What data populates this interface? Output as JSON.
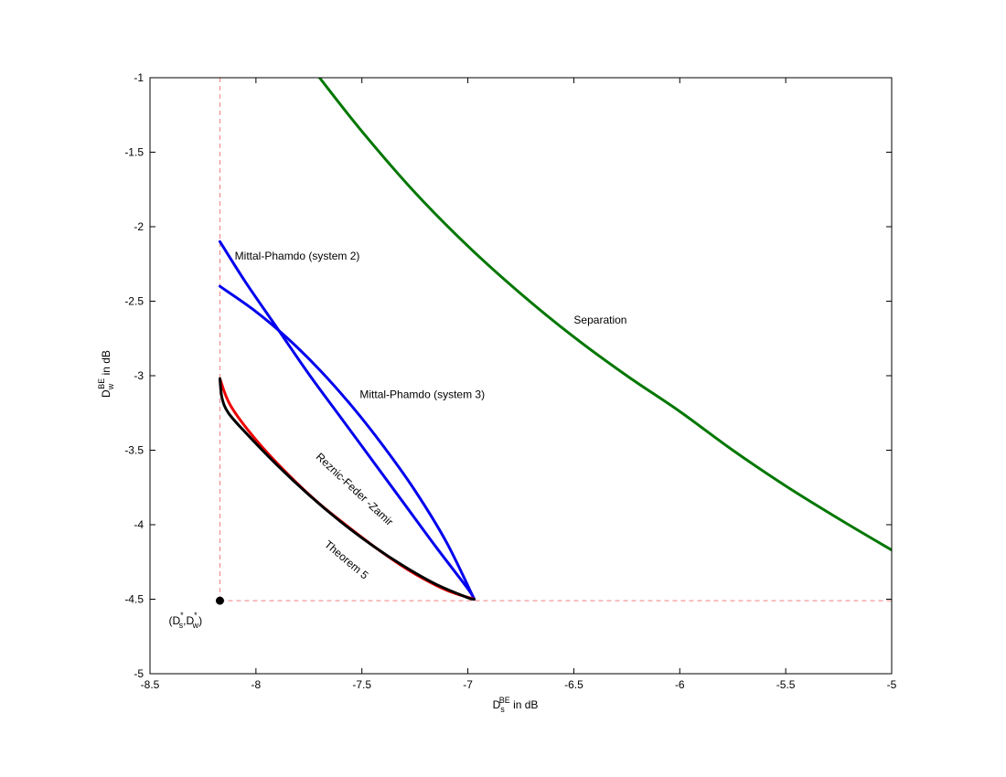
{
  "chart_data": {
    "type": "line",
    "xlim": [
      -8.5,
      -5
    ],
    "ylim": [
      -5,
      -1
    ],
    "xticks": [
      -8.5,
      -8,
      -7.5,
      -7,
      -6.5,
      -6,
      -5.5,
      -5
    ],
    "yticks": [
      -5,
      -4.5,
      -4,
      -3.5,
      -3,
      -2.5,
      -2,
      -1.5,
      -1
    ],
    "xtick_labels": [
      "-8.5",
      "-8",
      "-7.5",
      "-7",
      "-6.5",
      "-6",
      "-5.5",
      "-5"
    ],
    "ytick_labels": [
      "-5",
      "-4.5",
      "-4",
      "-3.5",
      "-3",
      "-2.5",
      "-2",
      "-1.5",
      "-1"
    ],
    "xlabel": {
      "main": "D",
      "sup": "BE",
      "sub": "s",
      "rest": " in dB"
    },
    "ylabel": {
      "main": "D",
      "sup": "BE",
      "sub": "w",
      "rest": " in dB"
    },
    "grid": false,
    "series": [
      {
        "name": "Separation",
        "color": "#007700",
        "x": [
          -7.7,
          -7.5,
          -7.25,
          -7.0,
          -6.75,
          -6.5,
          -6.25,
          -6.0,
          -5.75,
          -5.5,
          -5.25,
          -5.0
        ],
        "y": [
          -1.0,
          -1.36,
          -1.77,
          -2.13,
          -2.45,
          -2.74,
          -3.0,
          -3.24,
          -3.5,
          -3.74,
          -3.96,
          -4.17
        ]
      },
      {
        "name": "Mittal-Phamdo (system 2)",
        "color": "#0000ee",
        "x": [
          -8.17,
          -8.05,
          -7.9,
          -7.75,
          -7.6,
          -7.45,
          -7.3,
          -7.15,
          -7.0,
          -6.97
        ],
        "y": [
          -2.1,
          -2.37,
          -2.68,
          -2.99,
          -3.28,
          -3.57,
          -3.86,
          -4.15,
          -4.43,
          -4.5
        ]
      },
      {
        "name": "Mittal-Phamdo (system 3)",
        "color": "#0000ee",
        "x": [
          -8.17,
          -8.0,
          -7.85,
          -7.7,
          -7.55,
          -7.4,
          -7.25,
          -7.1,
          -6.97
        ],
        "y": [
          -2.4,
          -2.57,
          -2.75,
          -2.96,
          -3.2,
          -3.47,
          -3.77,
          -4.12,
          -4.5
        ]
      },
      {
        "name": "Reznic-Feder-Zamir",
        "color": "#ee0000",
        "x": [
          -8.17,
          -8.12,
          -8.0,
          -7.85,
          -7.7,
          -7.55,
          -7.4,
          -7.25,
          -7.1,
          -6.97
        ],
        "y": [
          -3.02,
          -3.2,
          -3.43,
          -3.66,
          -3.86,
          -4.03,
          -4.19,
          -4.33,
          -4.44,
          -4.5
        ]
      },
      {
        "name": "Theorem 5",
        "color": "#000000",
        "x": [
          -8.17,
          -8.16,
          -8.13,
          -8.05,
          -7.9,
          -7.75,
          -7.6,
          -7.45,
          -7.3,
          -7.15,
          -7.0,
          -6.97
        ],
        "y": [
          -3.02,
          -3.15,
          -3.25,
          -3.38,
          -3.6,
          -3.8,
          -3.98,
          -4.14,
          -4.28,
          -4.4,
          -4.49,
          -4.5
        ]
      }
    ],
    "reference_point": {
      "x": -8.17,
      "y": -4.51,
      "label": {
        "open": "(D",
        "sup1": "*",
        "sub1": "s",
        "comma": ",D",
        "sup2": "*",
        "sub2": "w",
        "close": ")"
      }
    },
    "reference_lines": {
      "x": -8.17,
      "y": -4.51,
      "color": "#f08080",
      "style": "dashed"
    },
    "annotations": [
      {
        "text": "Mittal-Phamdo (system 2)",
        "x": -8.1,
        "y": -2.22,
        "rotate": 0
      },
      {
        "text": "Mittal-Phamdo (system 3)",
        "x": -7.51,
        "y": -3.15,
        "rotate": 0
      },
      {
        "text": "Separation",
        "x": -6.5,
        "y": -2.65,
        "rotate": 0
      },
      {
        "text": "Reznic-Feder -Zamir",
        "x": -7.72,
        "y": -3.55,
        "rotate": 43
      },
      {
        "text": "Theorem 5",
        "x": -7.68,
        "y": -4.14,
        "rotate": 40
      }
    ]
  }
}
